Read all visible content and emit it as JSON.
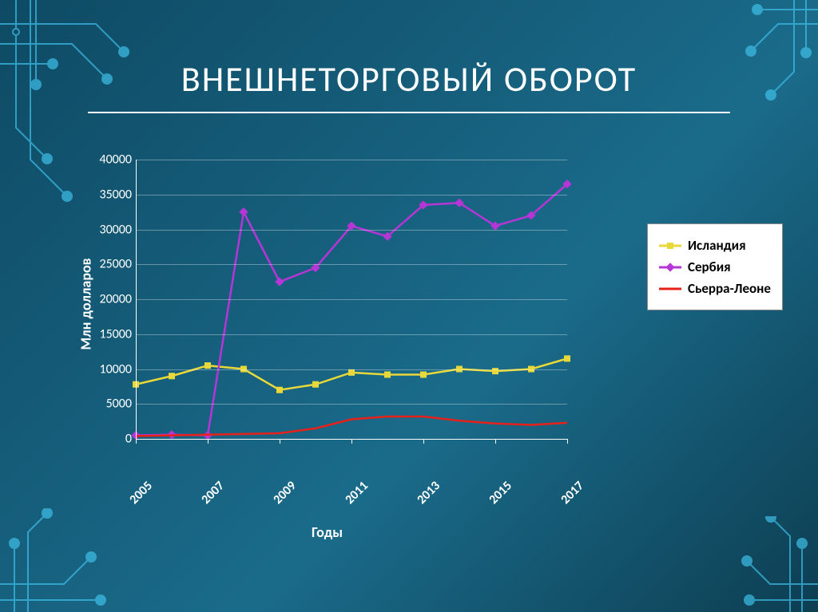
{
  "title": "ВНЕШНЕТОРГОВЫЙ ОБОРОТ",
  "chart": {
    "type": "line",
    "background_color": "transparent",
    "grid_color": "#ffffff",
    "grid_opacity": 0.35,
    "text_color": "#ffffff",
    "title_fontsize": 44,
    "axis_label_fontsize": 18,
    "tick_fontsize": 16,
    "ylabel": "Млн долларов",
    "xlabel": "Годы",
    "ylim": [
      0,
      40000
    ],
    "ytick_step": 5000,
    "yticks": [
      0,
      5000,
      10000,
      15000,
      20000,
      25000,
      30000,
      35000,
      40000
    ],
    "x_categories": [
      "2005",
      "2006",
      "2007",
      "2008",
      "2009",
      "2010",
      "2011",
      "2012",
      "2013",
      "2014",
      "2015",
      "2016",
      "2017"
    ],
    "x_tick_labels_shown": [
      "2005",
      "2007",
      "2009",
      "2011",
      "2013",
      "2015",
      "2017"
    ],
    "x_tick_rotation_deg": -45,
    "marker_size": 5,
    "line_width": 2.5,
    "series": [
      {
        "name": "Исландия",
        "color": "#e8d83a",
        "marker": "square",
        "values": [
          7800,
          9000,
          10500,
          10000,
          7000,
          7800,
          9500,
          9200,
          9200,
          10000,
          9700,
          10000,
          11500
        ]
      },
      {
        "name": "Сербия",
        "color": "#b635d6",
        "marker": "diamond",
        "values": [
          500,
          600,
          500,
          32500,
          22500,
          24500,
          30500,
          29000,
          33500,
          33800,
          30500,
          32000,
          36500
        ]
      },
      {
        "name": "Сьерра-Леоне",
        "color": "#e8201a",
        "marker": "none",
        "values": [
          400,
          500,
          600,
          700,
          800,
          1500,
          2800,
          3200,
          3200,
          2600,
          2200,
          2000,
          2300
        ]
      }
    ],
    "legend": {
      "position": "right",
      "background": "#ffffff",
      "border_color": "#888888",
      "text_color": "#000000",
      "fontsize": 17,
      "items": [
        {
          "label": "Исландия",
          "color": "#e8d83a",
          "marker": "square"
        },
        {
          "label": "Сербия",
          "color": "#b635d6",
          "marker": "diamond"
        },
        {
          "label": "Сьерра-Леоне",
          "color": "#e8201a",
          "marker": "none"
        }
      ]
    }
  },
  "decoration": {
    "circuit_color": "#3fbfe8",
    "circuit_opacity": 0.7
  }
}
